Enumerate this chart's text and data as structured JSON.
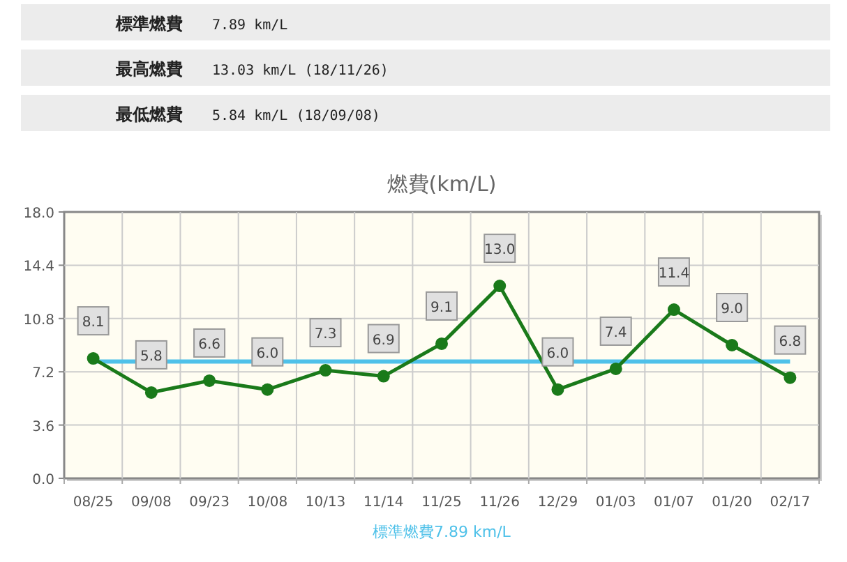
{
  "chart_data": {
    "type": "line",
    "title": "燃費(km/L)",
    "categories": [
      "08/25",
      "09/08",
      "09/23",
      "10/08",
      "10/13",
      "11/14",
      "11/25",
      "11/26",
      "12/29",
      "01/03",
      "01/07",
      "01/20",
      "02/17"
    ],
    "series": [
      {
        "color": "#1a7a1a",
        "values": [
          8.1,
          5.8,
          6.6,
          6.0,
          7.3,
          6.9,
          9.1,
          13.0,
          6.0,
          7.4,
          11.4,
          9.0,
          6.8
        ],
        "value_labels": [
          "8.1",
          "5.8",
          "6.6",
          "6.0",
          "7.3",
          "6.9",
          "9.1",
          "13.0",
          "6.0",
          "7.4",
          "11.4",
          "9.0",
          "6.8"
        ]
      }
    ],
    "ylim": [
      0,
      18
    ],
    "yticks": [
      {
        "value": 0,
        "label": "0.0"
      },
      3.6,
      7.2,
      10.8,
      14.4,
      {
        "value": 18,
        "label": "18.0"
      }
    ],
    "grid": true,
    "marker": "circle",
    "line_style": "solid",
    "ref_lines": [
      {
        "axis": "y",
        "value": 7.89,
        "label": "標準燃費7.89 km/L",
        "color": "#4fc1e9"
      }
    ],
    "annotations": [
      "標準燃費",
      "7.89 km/L",
      "最高燃費",
      "13.03 km/L (18/11/26)",
      "最低燃費",
      "5.84 km/L (18/09/08)"
    ]
  }
}
